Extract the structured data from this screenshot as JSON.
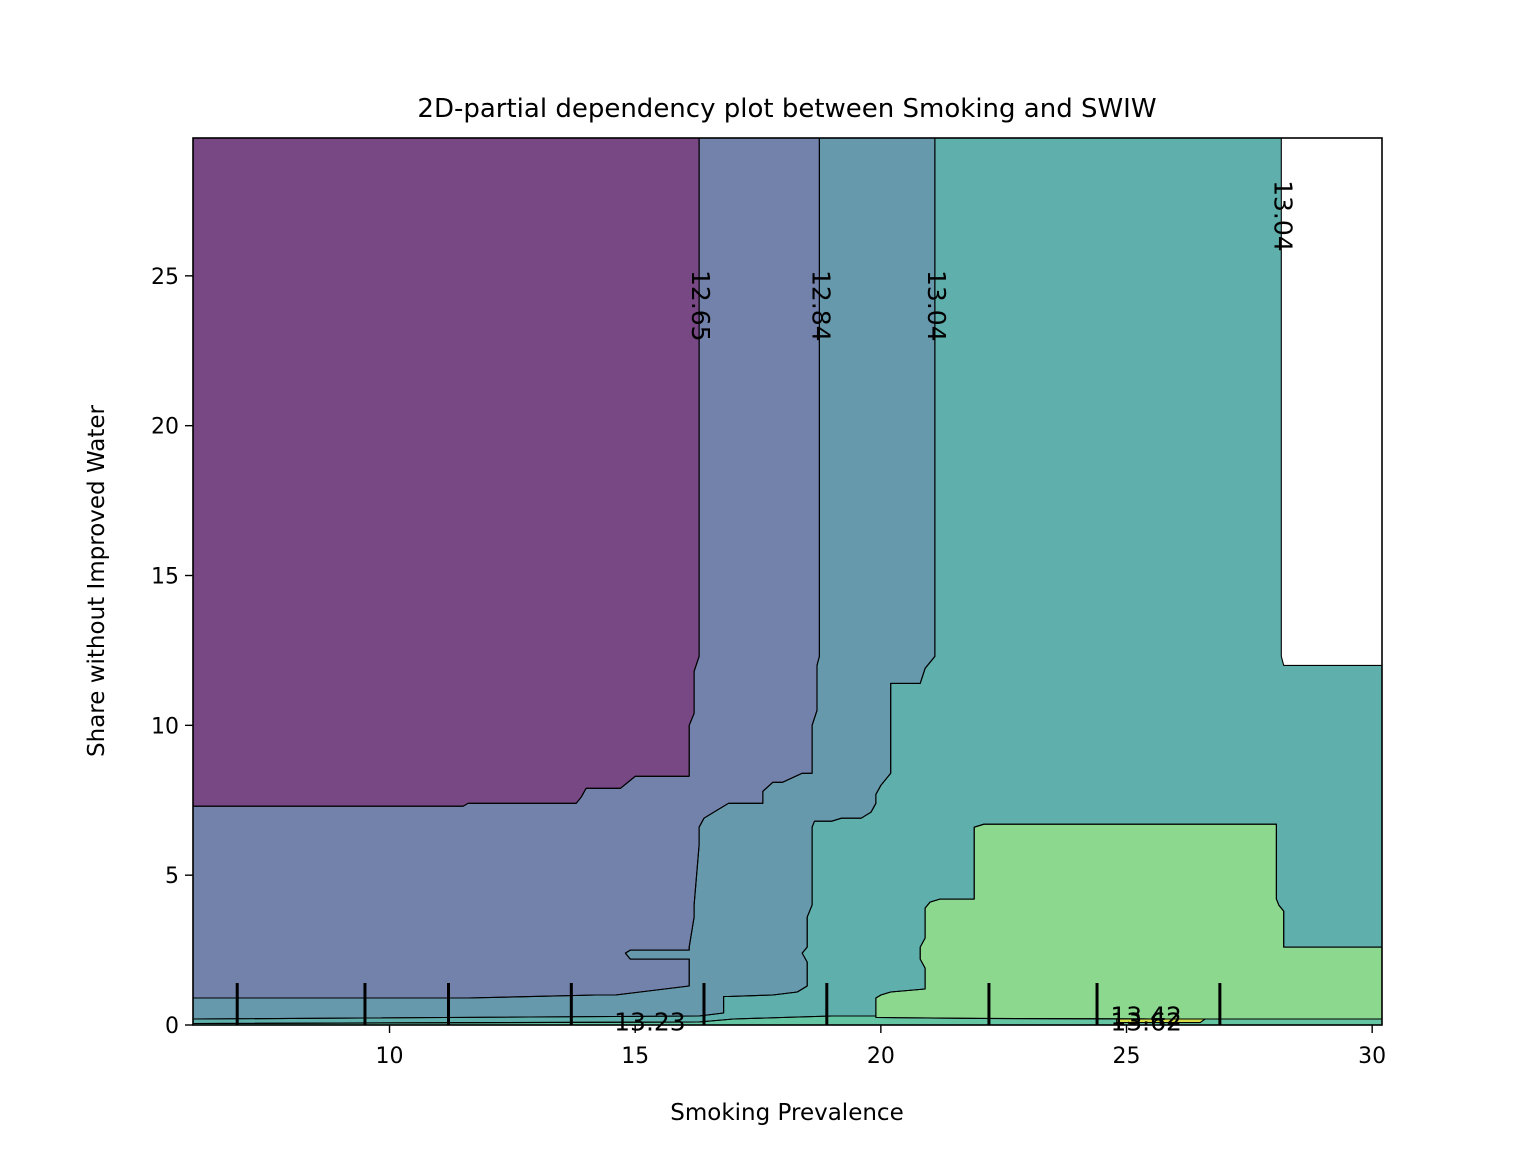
{
  "chart_data": {
    "type": "contour",
    "title": "2D-partial dependency plot between Smoking and SWIW",
    "xlabel": "Smoking Prevalence",
    "ylabel": "Share without Improved Water",
    "xlim": [
      6.0,
      30.2
    ],
    "ylim": [
      0.0,
      29.6
    ],
    "xticks": [
      10,
      15,
      20,
      25,
      30
    ],
    "yticks": [
      0,
      5,
      10,
      15,
      20,
      25
    ],
    "grid": false,
    "colormap": "viridis",
    "levels": [
      {
        "value": 12.46,
        "color": "#440154"
      },
      {
        "value": 12.65,
        "color": "#3b528b"
      },
      {
        "value": 12.84,
        "color": "#2c728e"
      },
      {
        "value": 13.04,
        "color": "#21918c"
      },
      {
        "value": 13.23,
        "color": "#28ae80"
      },
      {
        "value": 13.42,
        "color": "#5ec962"
      },
      {
        "value": 13.62,
        "color": "#fde725"
      }
    ],
    "region_opacity": 0.72,
    "regions": [
      {
        "level": 12.46,
        "points": [
          [
            6,
            29.6
          ],
          [
            16.3,
            29.6
          ],
          [
            16.3,
            12.3
          ],
          [
            16.2,
            11.8
          ],
          [
            16.2,
            10.4
          ],
          [
            16.1,
            10.0
          ],
          [
            16.1,
            8.3
          ],
          [
            15.0,
            8.3
          ],
          [
            14.7,
            7.9
          ],
          [
            14.0,
            7.9
          ],
          [
            13.9,
            7.6
          ],
          [
            13.8,
            7.4
          ],
          [
            11.6,
            7.4
          ],
          [
            11.5,
            7.3
          ],
          [
            6,
            7.3
          ]
        ]
      },
      {
        "level": 12.65,
        "points": [
          [
            6,
            7.3
          ],
          [
            11.5,
            7.3
          ],
          [
            11.6,
            7.4
          ],
          [
            13.8,
            7.4
          ],
          [
            13.9,
            7.6
          ],
          [
            14.0,
            7.9
          ],
          [
            14.7,
            7.9
          ],
          [
            15.0,
            8.3
          ],
          [
            16.1,
            8.3
          ],
          [
            16.1,
            10.0
          ],
          [
            16.2,
            10.4
          ],
          [
            16.2,
            11.8
          ],
          [
            16.3,
            12.3
          ],
          [
            16.3,
            29.6
          ],
          [
            18.75,
            29.6
          ],
          [
            18.75,
            12.3
          ],
          [
            18.7,
            12.0
          ],
          [
            18.7,
            10.5
          ],
          [
            18.6,
            10.0
          ],
          [
            18.6,
            8.4
          ],
          [
            18.4,
            8.4
          ],
          [
            18.0,
            8.1
          ],
          [
            17.8,
            8.1
          ],
          [
            17.6,
            7.8
          ],
          [
            17.6,
            7.4
          ],
          [
            16.9,
            7.4
          ],
          [
            16.6,
            7.1
          ],
          [
            16.4,
            6.9
          ],
          [
            16.3,
            6.6
          ],
          [
            16.3,
            6.0
          ],
          [
            16.2,
            4.0
          ],
          [
            16.2,
            3.6
          ],
          [
            16.1,
            2.6
          ],
          [
            16.1,
            2.5
          ],
          [
            14.9,
            2.5
          ],
          [
            14.8,
            2.4
          ],
          [
            14.9,
            2.2
          ],
          [
            16.1,
            2.2
          ],
          [
            16.1,
            1.3
          ],
          [
            14.6,
            1.0
          ],
          [
            14.2,
            1.0
          ],
          [
            11.6,
            0.9
          ],
          [
            6,
            0.9
          ]
        ]
      },
      {
        "level": 12.84,
        "points": [
          [
            6,
            0.9
          ],
          [
            11.6,
            0.9
          ],
          [
            14.2,
            1.0
          ],
          [
            14.6,
            1.0
          ],
          [
            16.1,
            1.3
          ],
          [
            16.1,
            2.2
          ],
          [
            14.9,
            2.2
          ],
          [
            14.8,
            2.4
          ],
          [
            14.9,
            2.5
          ],
          [
            16.1,
            2.5
          ],
          [
            16.1,
            2.6
          ],
          [
            16.2,
            3.6
          ],
          [
            16.2,
            4.0
          ],
          [
            16.3,
            6.0
          ],
          [
            16.3,
            6.6
          ],
          [
            16.4,
            6.9
          ],
          [
            16.6,
            7.1
          ],
          [
            16.9,
            7.4
          ],
          [
            17.6,
            7.4
          ],
          [
            17.6,
            7.8
          ],
          [
            17.8,
            8.1
          ],
          [
            18.0,
            8.1
          ],
          [
            18.4,
            8.4
          ],
          [
            18.6,
            8.4
          ],
          [
            18.6,
            10.0
          ],
          [
            18.7,
            10.5
          ],
          [
            18.7,
            12.0
          ],
          [
            18.75,
            12.3
          ],
          [
            18.75,
            29.6
          ],
          [
            21.1,
            29.6
          ],
          [
            21.1,
            12.3
          ],
          [
            21.0,
            12.1
          ],
          [
            20.9,
            11.9
          ],
          [
            20.8,
            11.4
          ],
          [
            20.2,
            11.4
          ],
          [
            20.2,
            8.4
          ],
          [
            20.0,
            8.0
          ],
          [
            19.9,
            7.7
          ],
          [
            19.9,
            7.4
          ],
          [
            19.8,
            7.1
          ],
          [
            19.6,
            6.9
          ],
          [
            19.2,
            6.9
          ],
          [
            19.0,
            6.8
          ],
          [
            18.65,
            6.8
          ],
          [
            18.6,
            6.6
          ],
          [
            18.6,
            4.0
          ],
          [
            18.5,
            3.6
          ],
          [
            18.5,
            2.6
          ],
          [
            18.4,
            2.4
          ],
          [
            18.5,
            2.1
          ],
          [
            18.5,
            1.3
          ],
          [
            18.3,
            1.1
          ],
          [
            17.8,
            1.0
          ],
          [
            16.9,
            0.95
          ],
          [
            16.8,
            0.95
          ],
          [
            16.8,
            0.4
          ],
          [
            16.3,
            0.3
          ],
          [
            6,
            0.2
          ]
        ]
      },
      {
        "level": 13.04,
        "points": [
          [
            6,
            0.2
          ],
          [
            16.3,
            0.3
          ],
          [
            16.8,
            0.4
          ],
          [
            16.8,
            0.95
          ],
          [
            16.9,
            0.95
          ],
          [
            17.8,
            1.0
          ],
          [
            18.3,
            1.1
          ],
          [
            18.5,
            1.3
          ],
          [
            18.5,
            2.1
          ],
          [
            18.4,
            2.4
          ],
          [
            18.5,
            2.6
          ],
          [
            18.5,
            3.6
          ],
          [
            18.6,
            4.0
          ],
          [
            18.6,
            6.6
          ],
          [
            18.65,
            6.8
          ],
          [
            19.0,
            6.8
          ],
          [
            19.2,
            6.9
          ],
          [
            19.6,
            6.9
          ],
          [
            19.8,
            7.1
          ],
          [
            19.9,
            7.4
          ],
          [
            19.9,
            7.7
          ],
          [
            20.0,
            8.0
          ],
          [
            20.2,
            8.4
          ],
          [
            20.2,
            11.4
          ],
          [
            20.8,
            11.4
          ],
          [
            20.9,
            11.9
          ],
          [
            21.0,
            12.1
          ],
          [
            21.1,
            12.3
          ],
          [
            21.1,
            29.6
          ],
          [
            28.15,
            29.6
          ],
          [
            28.15,
            12.3
          ],
          [
            28.2,
            12.0
          ],
          [
            30.2,
            12.0
          ],
          [
            30.2,
            2.6
          ],
          [
            28.2,
            2.6
          ],
          [
            28.2,
            3.8
          ],
          [
            28.1,
            4.0
          ],
          [
            28.05,
            4.2
          ],
          [
            28.05,
            6.7
          ],
          [
            28.0,
            6.7
          ],
          [
            22.1,
            6.7
          ],
          [
            21.9,
            6.6
          ],
          [
            21.9,
            4.2
          ],
          [
            21.2,
            4.2
          ],
          [
            21.0,
            4.1
          ],
          [
            20.9,
            3.9
          ],
          [
            20.9,
            2.9
          ],
          [
            20.8,
            2.6
          ],
          [
            20.8,
            2.2
          ],
          [
            20.9,
            1.9
          ],
          [
            20.9,
            1.2
          ],
          [
            20.2,
            1.1
          ],
          [
            20.0,
            1.0
          ],
          [
            19.9,
            0.9
          ],
          [
            19.9,
            0.3
          ],
          [
            19.0,
            0.3
          ],
          [
            17.0,
            0.2
          ],
          [
            16.3,
            0.1
          ],
          [
            6,
            0.05
          ],
          [
            6,
            0.2
          ]
        ]
      },
      {
        "level": 13.23,
        "points": [
          [
            6,
            0.05
          ],
          [
            16.3,
            0.1
          ],
          [
            17.0,
            0.2
          ],
          [
            19.0,
            0.3
          ],
          [
            19.9,
            0.3
          ],
          [
            19.9,
            0.25
          ],
          [
            22.0,
            0.22
          ],
          [
            25.5,
            0.2
          ],
          [
            28.0,
            0.2
          ],
          [
            30.2,
            0.2
          ],
          [
            30.2,
            0.0
          ],
          [
            6,
            0.0
          ]
        ]
      },
      {
        "level": 13.42,
        "points": [
          [
            19.9,
            0.3
          ],
          [
            19.9,
            0.9
          ],
          [
            20.0,
            1.0
          ],
          [
            20.2,
            1.1
          ],
          [
            20.9,
            1.2
          ],
          [
            20.9,
            1.9
          ],
          [
            20.8,
            2.2
          ],
          [
            20.8,
            2.6
          ],
          [
            20.9,
            2.9
          ],
          [
            20.9,
            3.9
          ],
          [
            21.0,
            4.1
          ],
          [
            21.2,
            4.2
          ],
          [
            21.9,
            4.2
          ],
          [
            21.9,
            6.6
          ],
          [
            22.1,
            6.7
          ],
          [
            28.0,
            6.7
          ],
          [
            28.05,
            6.7
          ],
          [
            28.05,
            4.2
          ],
          [
            28.1,
            4.0
          ],
          [
            28.2,
            3.8
          ],
          [
            28.2,
            2.6
          ],
          [
            30.2,
            2.6
          ],
          [
            30.2,
            0.2
          ],
          [
            28.0,
            0.2
          ],
          [
            25.5,
            0.2
          ],
          [
            22.0,
            0.22
          ],
          [
            19.9,
            0.25
          ]
        ]
      },
      {
        "level": 13.62,
        "points": [
          [
            24.8,
            0.08
          ],
          [
            26.5,
            0.08
          ],
          [
            26.6,
            0.2
          ],
          [
            24.8,
            0.2
          ]
        ]
      }
    ],
    "contour_labels": [
      {
        "text": "12.65",
        "x": 16.3,
        "y": 24.0,
        "rotation": 90
      },
      {
        "text": "12.84",
        "x": 18.75,
        "y": 24.0,
        "rotation": 90
      },
      {
        "text": "13.04",
        "x": 21.1,
        "y": 24.0,
        "rotation": 90
      },
      {
        "text": "13.04",
        "x": 28.15,
        "y": 27.0,
        "rotation": 90
      },
      {
        "text": "13.23",
        "x": 15.3,
        "y": 0.05,
        "rotation": 0
      },
      {
        "text": "13.42",
        "x": 25.4,
        "y": 0.25,
        "rotation": 0
      },
      {
        "text": "13.62",
        "x": 25.4,
        "y": 0.05,
        "rotation": 0
      }
    ],
    "rug_ticks_x": [
      6.9,
      9.5,
      11.2,
      13.7,
      16.4,
      18.9,
      22.2,
      24.4,
      26.9
    ]
  }
}
